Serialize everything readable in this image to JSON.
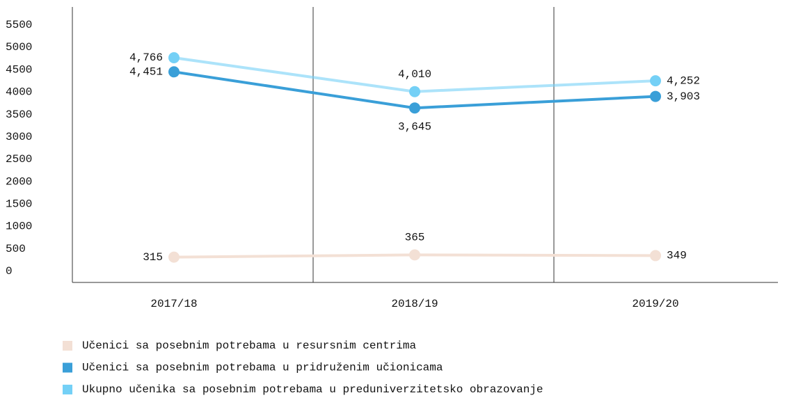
{
  "chart_data": {
    "type": "line",
    "categories": [
      "2017/18",
      "2018/19",
      "2019/20"
    ],
    "series": [
      {
        "name": "Učenici sa posebnim potrebama u resursnim centrima",
        "color": "#f3e0d5",
        "values": [
          315,
          365,
          349
        ]
      },
      {
        "name": "Učenici sa posebnim potrebama u pridruženim učionicama",
        "color": "#3a9fd8",
        "values": [
          4451,
          3645,
          3903
        ],
        "value_labels": [
          "4,451",
          "3,645",
          "3,903"
        ]
      },
      {
        "name": "Ukupno učenika sa posebnim potrebama u preduniverzitetsko obrazovanje",
        "color": "#74d0f6",
        "values": [
          4766,
          4010,
          4252
        ],
        "value_labels": [
          "4,766",
          "4,010",
          "4,252"
        ]
      }
    ],
    "ylim": [
      -250,
      5900
    ],
    "yticks": [
      0,
      500,
      1000,
      1500,
      2000,
      2500,
      3000,
      3500,
      4000,
      4500,
      5000,
      5500
    ]
  }
}
